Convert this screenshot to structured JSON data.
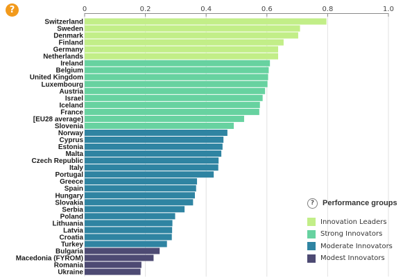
{
  "help_symbol": "?",
  "colors": {
    "Innovation Leaders": "#c2ee88",
    "Strong Innovators": "#67d2a0",
    "Moderate Innovators": "#2f84a2",
    "Modest Innovators": "#4d4a73"
  },
  "legend": {
    "help_symbol": "?",
    "title": "Performance groups",
    "items": [
      {
        "label": "Innovation Leaders",
        "color": "#c2ee88"
      },
      {
        "label": "Strong Innovators",
        "color": "#67d2a0"
      },
      {
        "label": "Moderate Innovators",
        "color": "#2f84a2"
      },
      {
        "label": "Modest Innovators",
        "color": "#4d4a73"
      }
    ]
  },
  "chart_data": {
    "type": "bar",
    "orientation": "horizontal",
    "xlim": [
      0,
      1.0
    ],
    "x_ticks": [
      0,
      0.2,
      0.4,
      0.6,
      0.8,
      1.0
    ],
    "x_tick_labels": [
      "0",
      "0.2",
      "0.4",
      "0.6",
      "0.8",
      "1.0"
    ],
    "grid": true,
    "legend_position": "bottom-right",
    "categories": [
      "Switzerland",
      "Sweden",
      "Denmark",
      "Finland",
      "Germany",
      "Netherlands",
      "Ireland",
      "Belgium",
      "United Kingdom",
      "Luxembourg",
      "Austria",
      "Israel",
      "Iceland",
      "France",
      "[EU28 average]",
      "Slovenia",
      "Norway",
      "Cyprus",
      "Estonia",
      "Malta",
      "Czech Republic",
      "Italy",
      "Portugal",
      "Greece",
      "Spain",
      "Hungary",
      "Slovakia",
      "Serbia",
      "Poland",
      "Lithuania",
      "Latvia",
      "Croatia",
      "Turkey",
      "Bulgaria",
      "Macedonia (FYROM)",
      "Romania",
      "Ukraine"
    ],
    "values": [
      0.796,
      0.709,
      0.703,
      0.655,
      0.637,
      0.637,
      0.61,
      0.606,
      0.604,
      0.602,
      0.594,
      0.586,
      0.577,
      0.575,
      0.525,
      0.491,
      0.47,
      0.457,
      0.454,
      0.45,
      0.441,
      0.44,
      0.425,
      0.37,
      0.367,
      0.363,
      0.357,
      0.329,
      0.298,
      0.289,
      0.288,
      0.287,
      0.271,
      0.247,
      0.227,
      0.187,
      0.184
    ],
    "groups": [
      "Innovation Leaders",
      "Innovation Leaders",
      "Innovation Leaders",
      "Innovation Leaders",
      "Innovation Leaders",
      "Innovation Leaders",
      "Strong Innovators",
      "Strong Innovators",
      "Strong Innovators",
      "Strong Innovators",
      "Strong Innovators",
      "Strong Innovators",
      "Strong Innovators",
      "Strong Innovators",
      "Strong Innovators",
      "Strong Innovators",
      "Moderate Innovators",
      "Moderate Innovators",
      "Moderate Innovators",
      "Moderate Innovators",
      "Moderate Innovators",
      "Moderate Innovators",
      "Moderate Innovators",
      "Moderate Innovators",
      "Moderate Innovators",
      "Moderate Innovators",
      "Moderate Innovators",
      "Moderate Innovators",
      "Moderate Innovators",
      "Moderate Innovators",
      "Moderate Innovators",
      "Moderate Innovators",
      "Moderate Innovators",
      "Modest Innovators",
      "Modest Innovators",
      "Modest Innovators",
      "Modest Innovators"
    ]
  }
}
